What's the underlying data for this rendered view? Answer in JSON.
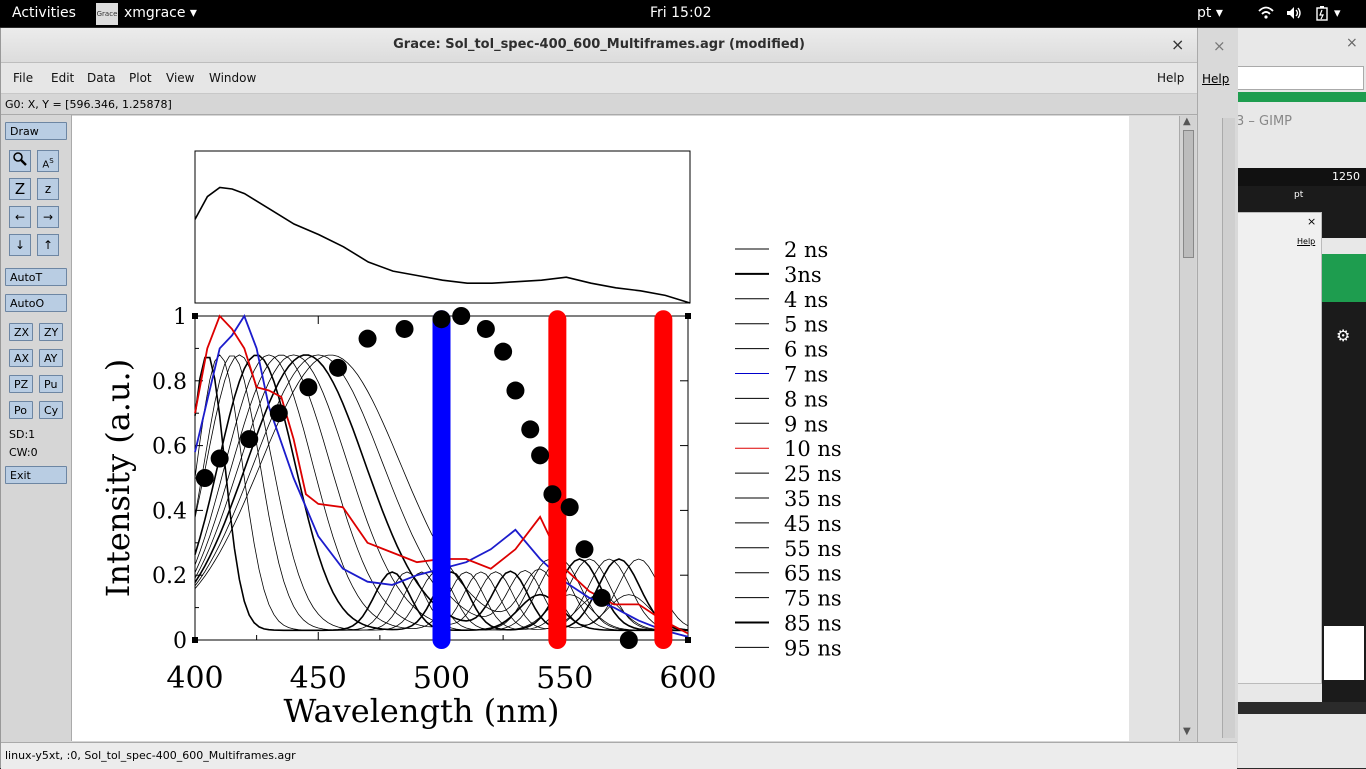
{
  "topbar": {
    "activities": "Activities",
    "app_name": "xmgrace",
    "app_icon_text": "Grace",
    "clock": "Fri 15:02",
    "keyboard_layout": "pt"
  },
  "window": {
    "title": "Grace: Sol_tol_spec-400_600_Multiframes.agr (modified)",
    "close_glyph": "×",
    "menu": [
      "File",
      "Edit",
      "Data",
      "Plot",
      "View",
      "Window"
    ],
    "help": "Help",
    "coords": "G0: X, Y = [596.346, 1.25878]",
    "status": "linux-y5xt, :0, Sol_tol_spec-400_600_Multiframes.agr"
  },
  "tools": {
    "draw": "Draw",
    "autot": "AutoT",
    "autoo": "AutoO",
    "zx": "ZX",
    "zy": "ZY",
    "ax": "AX",
    "ay": "AY",
    "pz": "PZ",
    "pu": "Pu",
    "po": "Po",
    "cy": "Cy",
    "sd": "SD:1",
    "cw": "CW:0",
    "exit": "Exit",
    "icons": [
      "zoom-icon",
      "autoscale-text-icon",
      "zoom-z-icon",
      "zoom-z-small-icon",
      "arrow-left-icon",
      "arrow-right-icon",
      "arrow-down-icon",
      "arrow-up-icon"
    ]
  },
  "background_window": {
    "title": "3 – GIMP",
    "ruler_value": "1250",
    "help": "Help",
    "kb": "pt",
    "close_glyph": "×"
  },
  "chart_data": {
    "type": "line",
    "xlabel": "Wavelength (nm)",
    "ylabel": "Intensity (a.u.)",
    "xlim": [
      400,
      600
    ],
    "ylim": [
      0,
      1
    ],
    "xticks": [
      "400",
      "450",
      "500",
      "550",
      "600"
    ],
    "yticks": [
      "0",
      "0.2",
      "0.4",
      "0.6",
      "0.8",
      "1"
    ],
    "legend": [
      "2 ns",
      "3ns",
      "4 ns",
      "5 ns",
      "6 ns",
      "7 ns",
      "8 ns",
      "9 ns",
      "10 ns",
      "25 ns",
      "35 ns",
      "45 ns",
      "55 ns",
      "65 ns",
      "75 ns",
      "85 ns",
      "95 ns"
    ],
    "legend_colors": [
      "#000000",
      "#000000",
      "#000000",
      "#000000",
      "#000000",
      "#0000cc",
      "#000000",
      "#000000",
      "#dd0000",
      "#000000",
      "#000000",
      "#000000",
      "#000000",
      "#000000",
      "#000000",
      "#000000",
      "#000000"
    ],
    "dots": {
      "x": [
        404,
        410,
        422,
        434,
        446,
        458,
        470,
        485,
        500,
        508,
        518,
        525,
        530,
        536,
        540,
        545,
        552,
        558,
        565,
        576
      ],
      "y": [
        0.5,
        0.56,
        0.62,
        0.7,
        0.78,
        0.84,
        0.93,
        0.96,
        0.99,
        1.0,
        0.96,
        0.89,
        0.77,
        0.65,
        0.57,
        0.45,
        0.41,
        0.28,
        0.13,
        0.0
      ]
    },
    "vertical_bars": [
      {
        "x": 500,
        "color": "#0000ff"
      },
      {
        "x": 547,
        "color": "#ff0000"
      },
      {
        "x": 590,
        "color": "#ff0000"
      }
    ],
    "blue_series": {
      "x": [
        400,
        405,
        410,
        415,
        420,
        425,
        430,
        440,
        450,
        460,
        470,
        480,
        490,
        500,
        510,
        520,
        530,
        540,
        550,
        560,
        570,
        580,
        590,
        600
      ],
      "y": [
        0.58,
        0.74,
        0.9,
        0.94,
        1.0,
        0.9,
        0.72,
        0.5,
        0.32,
        0.22,
        0.18,
        0.17,
        0.2,
        0.22,
        0.24,
        0.28,
        0.34,
        0.25,
        0.18,
        0.13,
        0.1,
        0.06,
        0.03,
        0.01
      ]
    },
    "red_series": {
      "x": [
        400,
        405,
        410,
        415,
        420,
        425,
        430,
        435,
        440,
        445,
        450,
        460,
        470,
        480,
        490,
        500,
        510,
        520,
        530,
        540,
        550,
        560,
        570,
        580,
        590,
        600
      ],
      "y": [
        0.7,
        0.9,
        1.0,
        0.96,
        0.9,
        0.78,
        0.77,
        0.75,
        0.62,
        0.45,
        0.42,
        0.41,
        0.3,
        0.27,
        0.24,
        0.25,
        0.25,
        0.22,
        0.28,
        0.38,
        0.22,
        0.15,
        0.11,
        0.11,
        0.06,
        0.02
      ]
    },
    "top_panel": {
      "x": [
        400,
        405,
        410,
        415,
        420,
        430,
        440,
        450,
        460,
        470,
        480,
        490,
        500,
        510,
        520,
        530,
        540,
        550,
        560,
        570,
        580,
        590,
        600
      ],
      "y": [
        0.55,
        0.7,
        0.76,
        0.75,
        0.72,
        0.62,
        0.52,
        0.45,
        0.37,
        0.27,
        0.21,
        0.18,
        0.15,
        0.13,
        0.13,
        0.14,
        0.15,
        0.17,
        0.13,
        0.1,
        0.08,
        0.05,
        0.0
      ]
    }
  }
}
